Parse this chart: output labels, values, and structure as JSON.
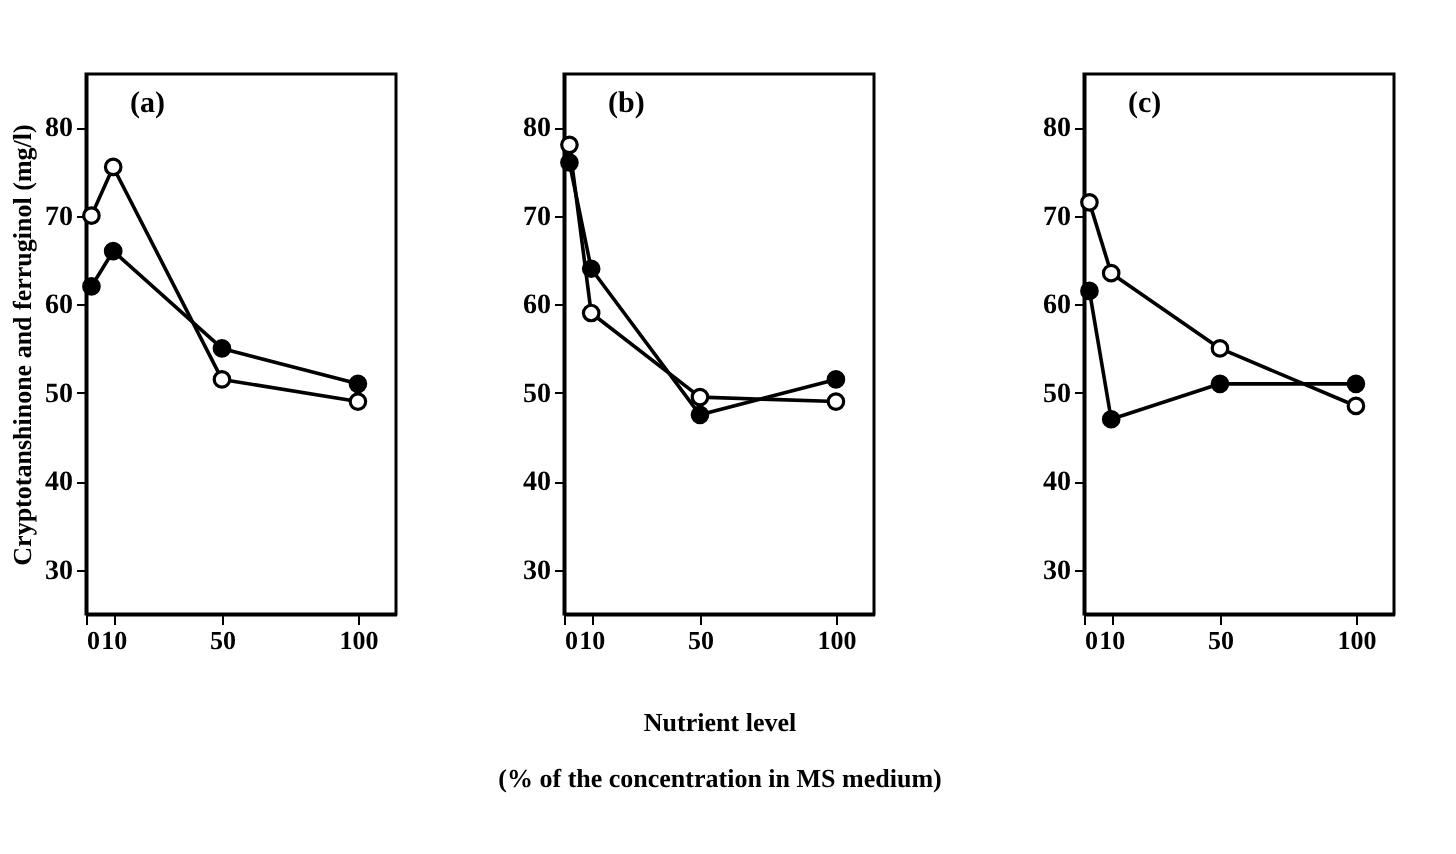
{
  "chart_data": [
    {
      "type": "line",
      "title": "(a)",
      "ylabel": "Cryptotanshinone and ferruginol (mg/l)",
      "x": [
        2,
        10,
        50,
        100
      ],
      "xlim": [
        0,
        114
      ],
      "xticks": [
        0,
        10,
        50,
        100
      ],
      "ylim": [
        25,
        86
      ],
      "yticks": [
        30,
        40,
        50,
        60,
        70,
        80
      ],
      "marker": "circle",
      "grid": false,
      "series": [
        {
          "color": "#000000",
          "values": [
            70,
            75.5,
            51.5,
            49
          ]
        },
        {
          "color": "#000000",
          "values": [
            62,
            66,
            55,
            51
          ]
        }
      ]
    },
    {
      "type": "line",
      "title": "(b)",
      "xlabel": "Nutrient level",
      "annotations": [
        "(% of the concentration in MS medium)"
      ],
      "x": [
        2,
        10,
        50,
        100
      ],
      "xlim": [
        0,
        114
      ],
      "xticks": [
        0,
        10,
        50,
        100
      ],
      "ylim": [
        25,
        86
      ],
      "yticks": [
        30,
        40,
        50,
        60,
        70,
        80
      ],
      "marker": "circle",
      "grid": false,
      "series": [
        {
          "color": "#000000",
          "values": [
            78,
            59,
            49.5,
            49
          ]
        },
        {
          "color": "#000000",
          "values": [
            76,
            64,
            47.5,
            51.5
          ]
        }
      ]
    },
    {
      "type": "line",
      "title": "(c)",
      "x": [
        2,
        10,
        50,
        100
      ],
      "xlim": [
        0,
        114
      ],
      "xticks": [
        0,
        10,
        50,
        100
      ],
      "ylim": [
        25,
        86
      ],
      "yticks": [
        30,
        40,
        50,
        60,
        70,
        80
      ],
      "marker": "circle",
      "grid": false,
      "series": [
        {
          "color": "#000000",
          "values": [
            71.5,
            63.5,
            55,
            48.5
          ]
        },
        {
          "color": "#000000",
          "values": [
            61.5,
            47,
            51,
            51
          ]
        }
      ]
    }
  ]
}
